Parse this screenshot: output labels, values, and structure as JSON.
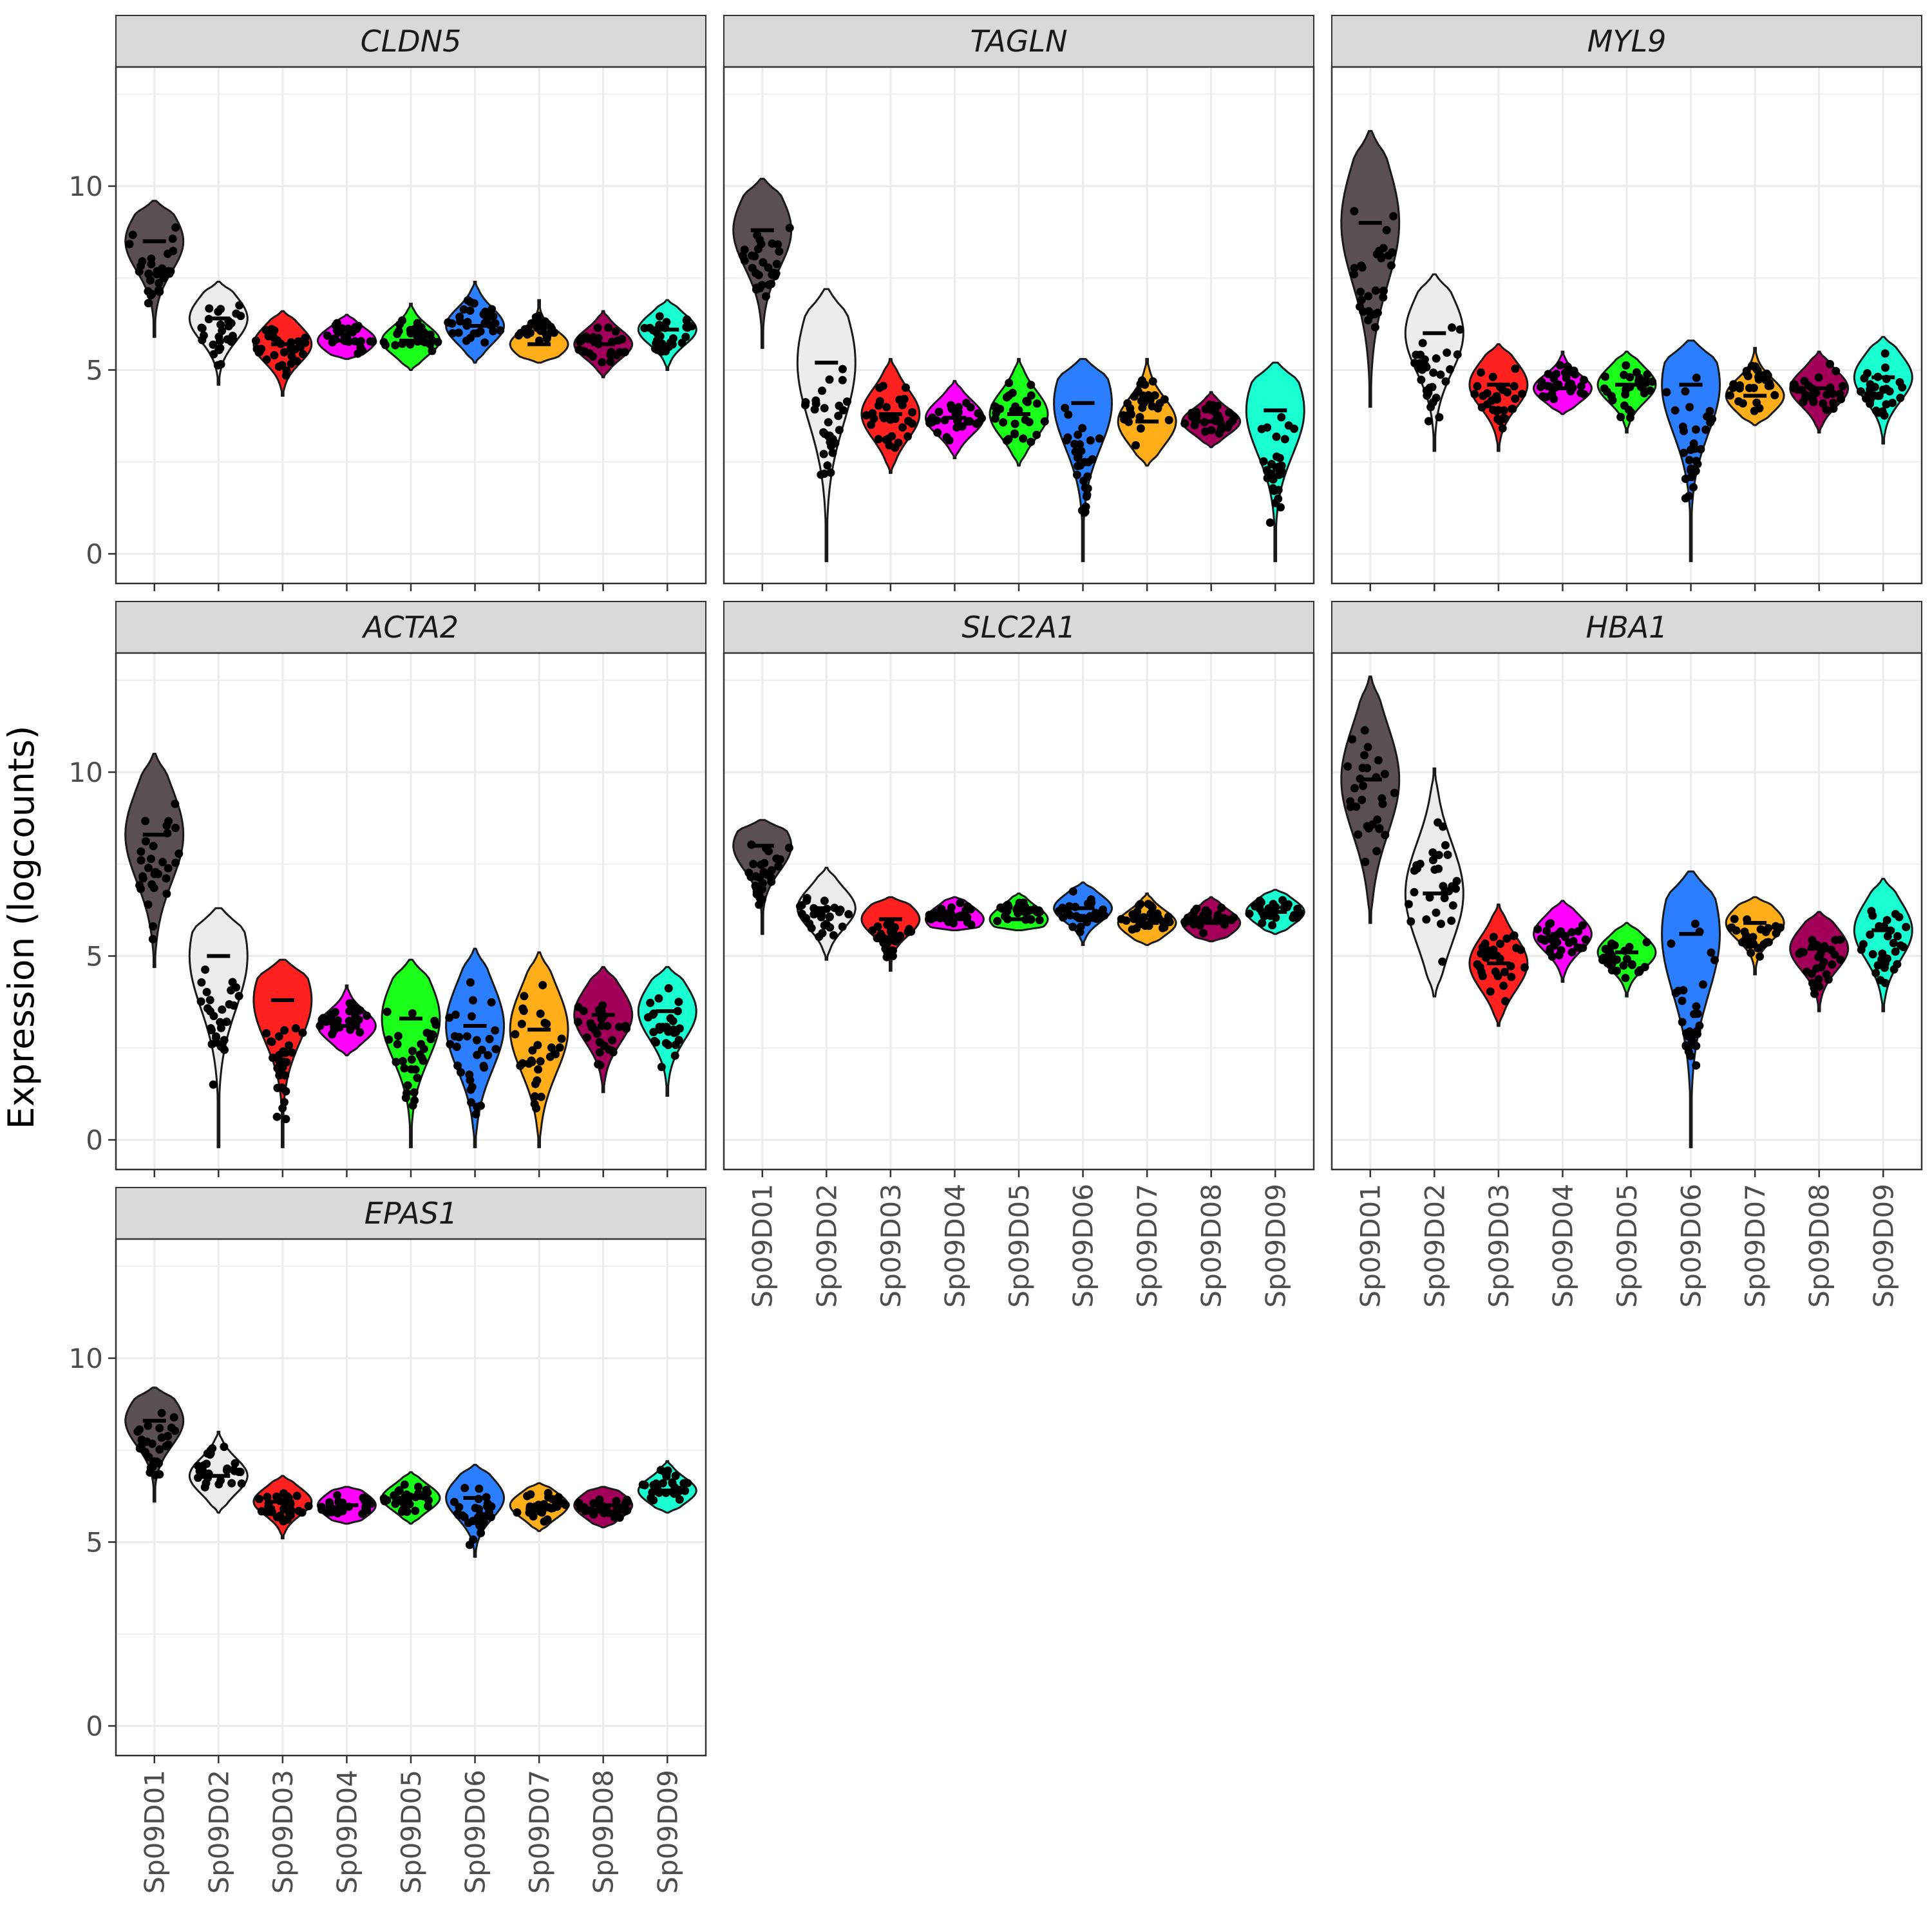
{
  "chart_data": {
    "type": "violin",
    "ylabel": "Expression (logcounts)",
    "ylim": [
      -0.8,
      13.2
    ],
    "yticks": [
      0,
      5,
      10
    ],
    "grid": true,
    "legend": "none",
    "categories": [
      "Sp09D01",
      "Sp09D02",
      "Sp09D03",
      "Sp09D04",
      "Sp09D05",
      "Sp09D06",
      "Sp09D07",
      "Sp09D08",
      "Sp09D09"
    ],
    "colors": [
      "#5a4f52",
      "#ececec",
      "#ff2020",
      "#ff00ff",
      "#1aff1a",
      "#2b7fff",
      "#ffae1a",
      "#a3005a",
      "#1affd1"
    ],
    "panels": [
      {
        "gene": "CLDN5",
        "median": [
          8.5,
          6.4,
          5.7,
          5.8,
          5.8,
          6.2,
          5.7,
          5.7,
          6.1
        ],
        "range": [
          [
            5.9,
            9.6
          ],
          [
            4.6,
            7.4
          ],
          [
            4.3,
            6.6
          ],
          [
            5.3,
            6.5
          ],
          [
            5.0,
            6.8
          ],
          [
            5.2,
            7.4
          ],
          [
            5.2,
            6.9
          ],
          [
            4.8,
            6.6
          ],
          [
            5.0,
            6.9
          ]
        ]
      },
      {
        "gene": "TAGLN",
        "median": [
          8.8,
          5.2,
          3.8,
          3.7,
          3.8,
          4.1,
          3.6,
          3.6,
          3.9
        ],
        "range": [
          [
            5.6,
            10.2
          ],
          [
            -0.2,
            7.2
          ],
          [
            2.2,
            5.3
          ],
          [
            2.6,
            4.7
          ],
          [
            2.4,
            5.3
          ],
          [
            -0.2,
            5.3
          ],
          [
            2.4,
            5.3
          ],
          [
            2.9,
            4.4
          ],
          [
            -0.2,
            5.2
          ]
        ]
      },
      {
        "gene": "MYL9",
        "median": [
          9.0,
          6.0,
          4.6,
          4.5,
          4.6,
          4.6,
          4.3,
          4.5,
          4.8
        ],
        "range": [
          [
            4.0,
            11.5
          ],
          [
            2.8,
            7.6
          ],
          [
            2.8,
            5.7
          ],
          [
            3.8,
            5.5
          ],
          [
            3.3,
            5.5
          ],
          [
            -0.2,
            5.8
          ],
          [
            3.5,
            5.6
          ],
          [
            3.3,
            5.5
          ],
          [
            3.0,
            5.9
          ]
        ]
      },
      {
        "gene": "ACTA2",
        "median": [
          8.3,
          5.0,
          3.8,
          3.1,
          3.3,
          3.1,
          3.0,
          3.4,
          3.5
        ],
        "range": [
          [
            4.7,
            10.5
          ],
          [
            -0.2,
            6.3
          ],
          [
            -0.2,
            4.9
          ],
          [
            2.3,
            4.2
          ],
          [
            -0.2,
            4.9
          ],
          [
            -0.2,
            5.2
          ],
          [
            -0.2,
            5.1
          ],
          [
            1.3,
            4.7
          ],
          [
            1.2,
            4.7
          ]
        ]
      },
      {
        "gene": "SLC2A1",
        "median": [
          8.0,
          6.3,
          6.0,
          6.0,
          6.0,
          6.3,
          5.9,
          5.9,
          6.2
        ],
        "range": [
          [
            5.6,
            8.7
          ],
          [
            4.9,
            7.4
          ],
          [
            4.6,
            6.6
          ],
          [
            5.7,
            6.6
          ],
          [
            5.7,
            6.7
          ],
          [
            5.3,
            7.0
          ],
          [
            5.3,
            6.7
          ],
          [
            5.4,
            6.6
          ],
          [
            5.6,
            6.8
          ]
        ]
      },
      {
        "gene": "HBA1",
        "median": [
          9.8,
          6.7,
          4.8,
          5.6,
          5.1,
          5.6,
          5.9,
          5.2,
          5.7
        ],
        "range": [
          [
            5.9,
            12.6
          ],
          [
            3.9,
            10.1
          ],
          [
            3.1,
            6.4
          ],
          [
            4.3,
            6.5
          ],
          [
            3.9,
            5.9
          ],
          [
            -0.2,
            7.3
          ],
          [
            4.5,
            6.6
          ],
          [
            3.5,
            6.2
          ],
          [
            3.5,
            7.1
          ]
        ]
      },
      {
        "gene": "EPAS1",
        "median": [
          8.3,
          6.8,
          6.1,
          6.0,
          6.2,
          6.2,
          6.0,
          6.0,
          6.4
        ],
        "range": [
          [
            6.1,
            9.2
          ],
          [
            5.8,
            8.0
          ],
          [
            5.1,
            6.8
          ],
          [
            5.5,
            6.5
          ],
          [
            5.5,
            6.9
          ],
          [
            4.6,
            7.1
          ],
          [
            5.3,
            6.6
          ],
          [
            5.4,
            6.5
          ],
          [
            5.8,
            7.2
          ]
        ]
      }
    ]
  }
}
